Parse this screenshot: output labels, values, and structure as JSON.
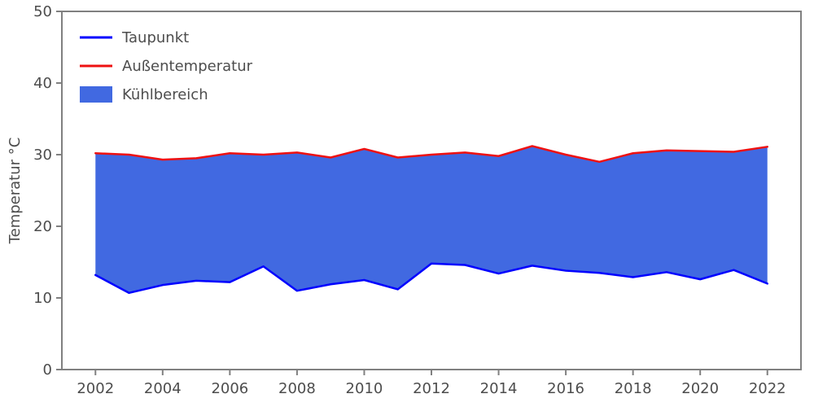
{
  "chart_data": {
    "type": "area",
    "title": "",
    "xlabel": "",
    "ylabel": "Temperatur °C",
    "x": [
      2002,
      2003,
      2004,
      2005,
      2006,
      2007,
      2008,
      2009,
      2010,
      2011,
      2012,
      2013,
      2014,
      2015,
      2016,
      2017,
      2018,
      2019,
      2020,
      2021,
      2022
    ],
    "series": [
      {
        "id": "taupunkt-line",
        "name": "Taupunkt",
        "color": "#0000ff",
        "values": [
          13.2,
          10.7,
          11.8,
          12.4,
          12.2,
          14.4,
          11.0,
          11.9,
          12.5,
          11.2,
          14.8,
          14.6,
          13.4,
          14.5,
          13.8,
          13.5,
          12.9,
          13.6,
          12.6,
          13.9,
          12.0
        ]
      },
      {
        "id": "aussentemperatur-line",
        "name": "Außentemperatur",
        "color": "#ee1111",
        "values": [
          30.2,
          30.0,
          29.3,
          29.5,
          30.2,
          30.0,
          30.3,
          29.6,
          30.8,
          29.6,
          30.0,
          30.3,
          29.8,
          31.2,
          30.0,
          29.0,
          30.2,
          30.6,
          30.5,
          30.4,
          31.1
        ]
      }
    ],
    "fill": {
      "id": "kuehlbereich-area",
      "name": "Kühlbereich",
      "color": "#4169e1",
      "between": [
        "Taupunkt",
        "Außentemperatur"
      ]
    },
    "legend": [
      {
        "label": "Taupunkt",
        "type": "line",
        "color": "#0000ff"
      },
      {
        "label": "Außentemperatur",
        "type": "line",
        "color": "#ee1111"
      },
      {
        "label": "Kühlbereich",
        "type": "patch",
        "color": "#4169e1"
      }
    ],
    "legend_position": "upper-left",
    "grid": false,
    "xlim": [
      2001,
      2023
    ],
    "ylim": [
      0,
      50
    ],
    "xticks": [
      2002,
      2004,
      2006,
      2008,
      2010,
      2012,
      2014,
      2016,
      2018,
      2020,
      2022
    ],
    "yticks": [
      0,
      10,
      20,
      30,
      40,
      50
    ],
    "axis_color": "#808080",
    "text_color": "#4d4d4d"
  }
}
